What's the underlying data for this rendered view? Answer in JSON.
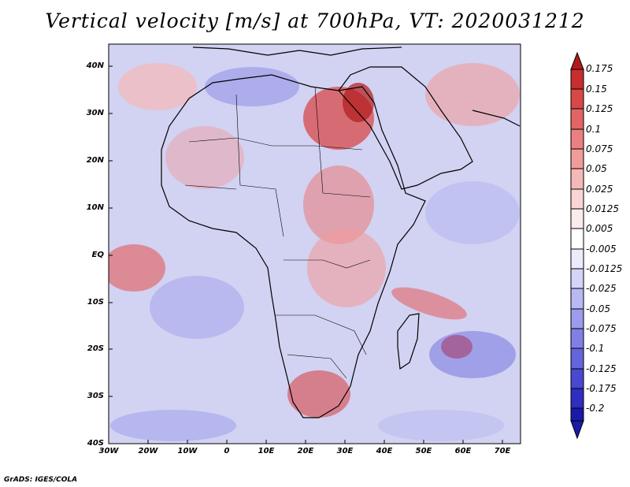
{
  "title": "Vertical velocity [m/s] at 700hPa, VT: 2020031212",
  "map": {
    "region": "Africa",
    "lat_labels": [
      "40N",
      "30N",
      "20N",
      "10N",
      "EQ",
      "10S",
      "20S",
      "30S",
      "40S"
    ],
    "lon_labels": [
      "30W",
      "20W",
      "10W",
      "0",
      "10E",
      "20E",
      "30E",
      "40E",
      "50E",
      "60E",
      "70E"
    ]
  },
  "colorbar": {
    "labels": [
      "0.175",
      "0.15",
      "0.125",
      "0.1",
      "0.075",
      "0.05",
      "0.025",
      "0.0125",
      "0.005",
      "-0.005",
      "-0.0125",
      "-0.025",
      "-0.05",
      "-0.075",
      "-0.1",
      "-0.125",
      "-0.175",
      "-0.2"
    ],
    "colors": [
      "#b21a1a",
      "#c92e2e",
      "#d84848",
      "#e26464",
      "#ea8080",
      "#f09c9c",
      "#f5b8b8",
      "#f9d4d4",
      "#fcebeb",
      "#ffffff",
      "#ebebfc",
      "#d4d4f8",
      "#b8b8f2",
      "#9c9cec",
      "#8080e4",
      "#6464dc",
      "#4848d0",
      "#2e2ec0",
      "#1a1aa8"
    ]
  },
  "credit": "GrADS: IGES/COLA"
}
